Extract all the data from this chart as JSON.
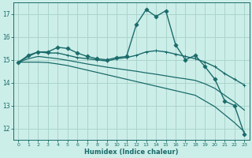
{
  "xlabel": "Humidex (Indice chaleur)",
  "xlim": [
    -0.5,
    23.5
  ],
  "ylim": [
    11.5,
    17.5
  ],
  "xticks": [
    0,
    1,
    2,
    3,
    4,
    5,
    6,
    7,
    8,
    9,
    10,
    11,
    12,
    13,
    14,
    15,
    16,
    17,
    18,
    19,
    20,
    21,
    22,
    23
  ],
  "yticks": [
    12,
    13,
    14,
    15,
    16,
    17
  ],
  "background_color": "#cceee8",
  "grid_color": "#aad4cc",
  "line_color": "#1a6b6b",
  "series": [
    {
      "x": [
        0,
        1,
        2,
        3,
        4,
        5,
        6,
        7,
        8,
        9,
        10,
        11,
        12,
        13,
        14,
        15,
        16,
        17,
        18,
        19,
        20,
        21,
        22,
        23
      ],
      "y": [
        14.9,
        15.2,
        15.35,
        15.35,
        15.55,
        15.5,
        15.3,
        15.15,
        15.05,
        15.0,
        15.1,
        15.15,
        16.55,
        17.2,
        16.9,
        17.15,
        15.65,
        15.0,
        15.2,
        14.7,
        14.15,
        13.2,
        13.0,
        11.75
      ],
      "marker": "D",
      "markersize": 2.5,
      "linewidth": 1.0
    },
    {
      "x": [
        0,
        1,
        2,
        3,
        4,
        5,
        6,
        7,
        8,
        9,
        10,
        11,
        12,
        13,
        14,
        15,
        16,
        17,
        18,
        19,
        20,
        21,
        22,
        23
      ],
      "y": [
        14.9,
        15.15,
        15.35,
        15.3,
        15.3,
        15.2,
        15.1,
        15.05,
        15.0,
        14.95,
        15.05,
        15.1,
        15.2,
        15.35,
        15.4,
        15.35,
        15.25,
        15.15,
        15.05,
        14.9,
        14.7,
        14.4,
        14.15,
        13.9
      ],
      "marker": "+",
      "markersize": 3.5,
      "linewidth": 1.0
    },
    {
      "x": [
        0,
        1,
        2,
        3,
        4,
        5,
        6,
        7,
        8,
        9,
        10,
        11,
        12,
        13,
        14,
        15,
        16,
        17,
        18,
        19,
        20,
        21,
        22,
        23
      ],
      "y": [
        14.9,
        15.05,
        15.15,
        15.1,
        15.05,
        14.98,
        14.9,
        14.82,
        14.75,
        14.68,
        14.62,
        14.56,
        14.5,
        14.43,
        14.37,
        14.3,
        14.23,
        14.17,
        14.1,
        13.95,
        13.75,
        13.45,
        13.15,
        12.8
      ],
      "marker": null,
      "markersize": 0,
      "linewidth": 0.9
    },
    {
      "x": [
        0,
        1,
        2,
        3,
        4,
        5,
        6,
        7,
        8,
        9,
        10,
        11,
        12,
        13,
        14,
        15,
        16,
        17,
        18,
        19,
        20,
        21,
        22,
        23
      ],
      "y": [
        14.9,
        14.9,
        14.9,
        14.88,
        14.82,
        14.75,
        14.65,
        14.55,
        14.45,
        14.35,
        14.25,
        14.15,
        14.05,
        13.95,
        13.85,
        13.75,
        13.65,
        13.55,
        13.45,
        13.2,
        12.95,
        12.6,
        12.25,
        11.85
      ],
      "marker": null,
      "markersize": 0,
      "linewidth": 0.9
    }
  ]
}
